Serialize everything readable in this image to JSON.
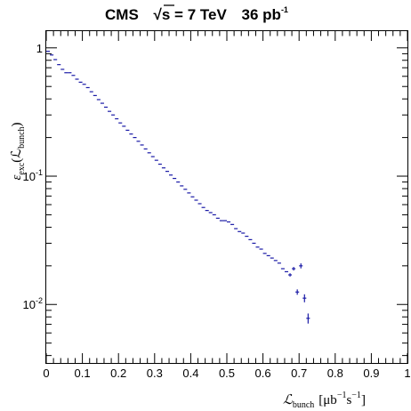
{
  "chart_data": {
    "type": "scatter",
    "title": {
      "experiment": "CMS",
      "sqrt_prefix": "√",
      "sqrt_var": "s",
      "energy": " = 7 TeV",
      "lumi": "36 pb",
      "lumi_exp": "-1"
    },
    "xlabel": {
      "symbol": "ℒ",
      "sub": "bunch",
      "units": "[μb",
      "units_mid": "s",
      "units_end": "]",
      "exp": "−1"
    },
    "ylabel": {
      "symbol": "ε",
      "sub": "exc",
      "paren_open": "(ℒ",
      "paren_sub": "bunch",
      "paren_close": ")"
    },
    "x_range": [
      0,
      1
    ],
    "y_range": [
      0.0035,
      1.35
    ],
    "y_scale": "log",
    "x_ticks": [
      "0",
      "0.1",
      "0.2",
      "0.3",
      "0.4",
      "0.5",
      "0.6",
      "0.7",
      "0.8",
      "0.9",
      "1"
    ],
    "y_ticks": [
      {
        "value": 1,
        "base": "1",
        "exp": ""
      },
      {
        "value": 0.1,
        "base": "10",
        "exp": "-1"
      },
      {
        "value": 0.01,
        "base": "10",
        "exp": "-2"
      }
    ],
    "grid": false,
    "marker_color": "#1a1aa6",
    "bin_width": 0.01,
    "x": [
      0.005,
      0.015,
      0.025,
      0.035,
      0.045,
      0.055,
      0.065,
      0.075,
      0.085,
      0.095,
      0.105,
      0.115,
      0.125,
      0.135,
      0.145,
      0.155,
      0.165,
      0.175,
      0.185,
      0.195,
      0.205,
      0.215,
      0.225,
      0.235,
      0.245,
      0.255,
      0.265,
      0.275,
      0.285,
      0.295,
      0.305,
      0.315,
      0.325,
      0.335,
      0.345,
      0.355,
      0.365,
      0.375,
      0.385,
      0.395,
      0.405,
      0.415,
      0.425,
      0.435,
      0.445,
      0.455,
      0.465,
      0.475,
      0.485,
      0.495,
      0.505,
      0.515,
      0.525,
      0.535,
      0.545,
      0.555,
      0.565,
      0.575,
      0.585,
      0.595,
      0.605,
      0.615,
      0.625,
      0.635,
      0.645,
      0.655,
      0.665,
      0.675,
      0.685,
      0.695,
      0.705,
      0.715,
      0.725
    ],
    "y": [
      0.94,
      0.88,
      0.81,
      0.74,
      0.68,
      0.64,
      0.64,
      0.61,
      0.57,
      0.54,
      0.52,
      0.49,
      0.455,
      0.425,
      0.395,
      0.37,
      0.345,
      0.32,
      0.3,
      0.28,
      0.26,
      0.245,
      0.228,
      0.213,
      0.2,
      0.187,
      0.175,
      0.163,
      0.152,
      0.142,
      0.133,
      0.124,
      0.116,
      0.109,
      0.102,
      0.096,
      0.09,
      0.084,
      0.079,
      0.074,
      0.069,
      0.065,
      0.061,
      0.057,
      0.054,
      0.052,
      0.05,
      0.047,
      0.045,
      0.045,
      0.044,
      0.042,
      0.039,
      0.037,
      0.036,
      0.034,
      0.032,
      0.03,
      0.028,
      0.027,
      0.025,
      0.024,
      0.023,
      0.022,
      0.021,
      0.019,
      0.018,
      0.017,
      0.019,
      0.0125,
      0.02,
      0.0112,
      0.0078
    ],
    "yerr": [
      0,
      0,
      0,
      0,
      0,
      0,
      0,
      0,
      0,
      0,
      0,
      0,
      0,
      0,
      0,
      0,
      0,
      0,
      0,
      0,
      0,
      0,
      0,
      0,
      0,
      0,
      0,
      0,
      0,
      0,
      0,
      0,
      0,
      0,
      0,
      0,
      0,
      0,
      0,
      0,
      0,
      0,
      0,
      0,
      0,
      0,
      0,
      0,
      0,
      0,
      0,
      0,
      0,
      0,
      0,
      0,
      0,
      0,
      0,
      0,
      0,
      0,
      0,
      0,
      0,
      0,
      0,
      0.0005,
      0.0006,
      0.0006,
      0.0009,
      0.0008,
      0.0007
    ]
  }
}
